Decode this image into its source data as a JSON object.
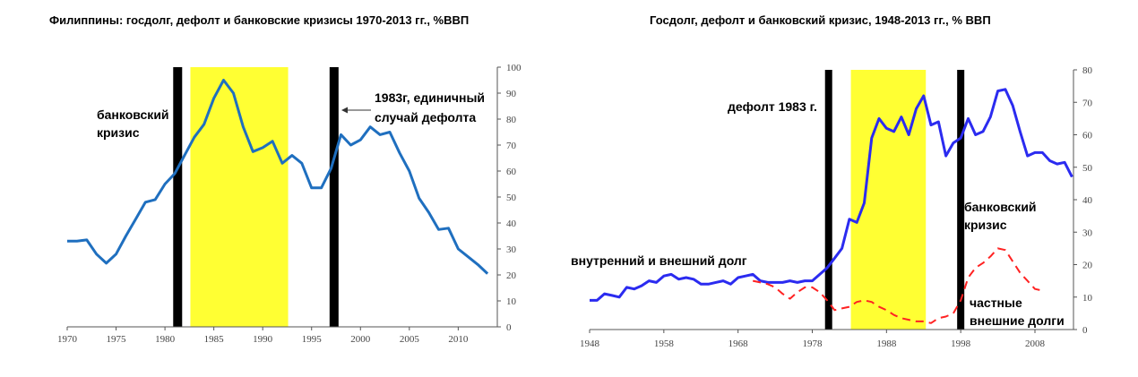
{
  "chart_data": [
    {
      "type": "line",
      "title": "Филиппины: госдолг, дефолт и банковские кризисы 1970-2013 гг., %ВВП",
      "xlim": [
        1970,
        2014
      ],
      "ylim": [
        0,
        100
      ],
      "x_ticks": [
        "1970",
        "1975",
        "1980",
        "1985",
        "1990",
        "1995",
        "2000",
        "2005",
        "2010"
      ],
      "y_ticks": [
        "0",
        "10",
        "20",
        "30",
        "40",
        "50",
        "60",
        "70",
        "80",
        "90",
        "100"
      ],
      "y_axis_side": "right",
      "grid": false,
      "series": [
        {
          "color": "#1f6fbf",
          "x": [
            1970,
            1971,
            1972,
            1973,
            1974,
            1975,
            1976,
            1977,
            1978,
            1979,
            1980,
            1981,
            1982,
            1983,
            1984,
            1985,
            1986,
            1987,
            1988,
            1989,
            1990,
            1991,
            1992,
            1993,
            1994,
            1995,
            1996,
            1997,
            1998,
            1999,
            2000,
            2001,
            2002,
            2003,
            2004,
            2005,
            2006,
            2007,
            2008,
            2009,
            2010,
            2011,
            2012,
            2013
          ],
          "values": [
            33,
            33,
            33.5,
            28,
            24.5,
            28,
            35,
            41.5,
            48,
            49,
            55,
            59,
            66,
            73,
            78,
            88,
            95,
            90,
            77,
            67.5,
            69,
            71.5,
            63,
            66,
            63,
            53.5,
            53.5,
            61,
            74,
            70,
            72,
            77,
            74,
            75,
            67,
            60,
            49.5,
            44,
            37.5,
            38,
            30,
            27,
            24,
            20.5
          ]
        }
      ],
      "markers": [
        {
          "kind": "bar",
          "x": 1981.3,
          "color": "#000000"
        },
        {
          "kind": "band",
          "from": 1982.6,
          "to": 1992.6,
          "color": "#ffff33"
        },
        {
          "kind": "bar",
          "x": 1997.3,
          "color": "#000000"
        }
      ],
      "annotations": [
        {
          "lines": [
            "банковский",
            "кризис"
          ]
        },
        {
          "lines": [
            "1983г, единичный",
            "случай дефолта"
          ]
        }
      ]
    },
    {
      "type": "line",
      "title": "Госдолг, дефолт и банковский кризис, 1948-2013 гг., % ВВП",
      "xlim": [
        1948,
        2013
      ],
      "ylim": [
        0,
        80
      ],
      "x_ticks": [
        "1948",
        "1958",
        "1968",
        "1978",
        "1988",
        "1998",
        "2008"
      ],
      "y_ticks": [
        "0",
        "10",
        "20",
        "30",
        "40",
        "50",
        "60",
        "70",
        "80"
      ],
      "y_axis_side": "right",
      "grid": false,
      "series": [
        {
          "name": "внутренний и внешний долг",
          "color": "#2b2bf0",
          "style": "solid",
          "x": [
            1948,
            1949,
            1950,
            1951,
            1952,
            1953,
            1954,
            1955,
            1956,
            1957,
            1958,
            1959,
            1960,
            1961,
            1962,
            1963,
            1964,
            1965,
            1966,
            1967,
            1968,
            1969,
            1970,
            1971,
            1972,
            1973,
            1974,
            1975,
            1976,
            1977,
            1978,
            1979,
            1980,
            1981,
            1982,
            1983,
            1984,
            1985,
            1986,
            1987,
            1988,
            1989,
            1990,
            1991,
            1992,
            1993,
            1994,
            1995,
            1996,
            1997,
            1998,
            1999,
            2000,
            2001,
            2002,
            2003,
            2004,
            2005,
            2006,
            2007,
            2008,
            2009,
            2010,
            2011,
            2012,
            2013
          ],
          "values": [
            9,
            9,
            11,
            10.5,
            10,
            13,
            12.5,
            13.5,
            15,
            14.5,
            16.5,
            17,
            15.5,
            16,
            15.5,
            14,
            14,
            14.5,
            15,
            14,
            16,
            16.5,
            17,
            15,
            14.5,
            14.5,
            14.5,
            15,
            14.5,
            15,
            15,
            17,
            19,
            22,
            25,
            34,
            33,
            39,
            59,
            65,
            62,
            61,
            65.5,
            60,
            68,
            72,
            63,
            64,
            53.5,
            57.5,
            59,
            65,
            60,
            61,
            65.5,
            73.5,
            74,
            69,
            61,
            53.5,
            54.5,
            54.5,
            52,
            51,
            51.5,
            47
          ]
        },
        {
          "name": "частные внешние долги",
          "color": "#ff2222",
          "style": "dashed",
          "x": [
            1970,
            1971,
            1972,
            1973,
            1974,
            1975,
            1976,
            1977,
            1978,
            1979,
            1980,
            1981,
            1982,
            1983,
            1984,
            1985,
            1986,
            1987,
            1988,
            1989,
            1990,
            1991,
            1992,
            1993,
            1994,
            1995,
            1996,
            1997,
            1998,
            1999,
            2000,
            2001,
            2002,
            2003,
            2004,
            2005,
            2006,
            2007,
            2008,
            2009
          ],
          "values": [
            15,
            14.5,
            14,
            13,
            11,
            9.5,
            11.5,
            13,
            13,
            11.5,
            9,
            6,
            6.5,
            7,
            8.5,
            9,
            8.5,
            7,
            6,
            4.5,
            3.5,
            3,
            2.5,
            2.5,
            2,
            3.5,
            4,
            5,
            9,
            16,
            19,
            20.5,
            22.5,
            25,
            24.5,
            21,
            17.5,
            15,
            12.5,
            12
          ]
        }
      ],
      "markers": [
        {
          "kind": "bar",
          "x": 1980.2,
          "color": "#000000"
        },
        {
          "kind": "band",
          "from": 1983.2,
          "to": 1993.3,
          "color": "#ffff33"
        },
        {
          "kind": "bar",
          "x": 1998.0,
          "color": "#000000"
        }
      ],
      "annotations": [
        {
          "lines": [
            "дефолт 1983 г."
          ]
        },
        {
          "lines": [
            "банковский",
            "кризис"
          ]
        },
        {
          "lines": [
            "внутренний и внешний долг"
          ]
        },
        {
          "lines": [
            "частные",
            "внешние долги"
          ]
        }
      ]
    }
  ]
}
